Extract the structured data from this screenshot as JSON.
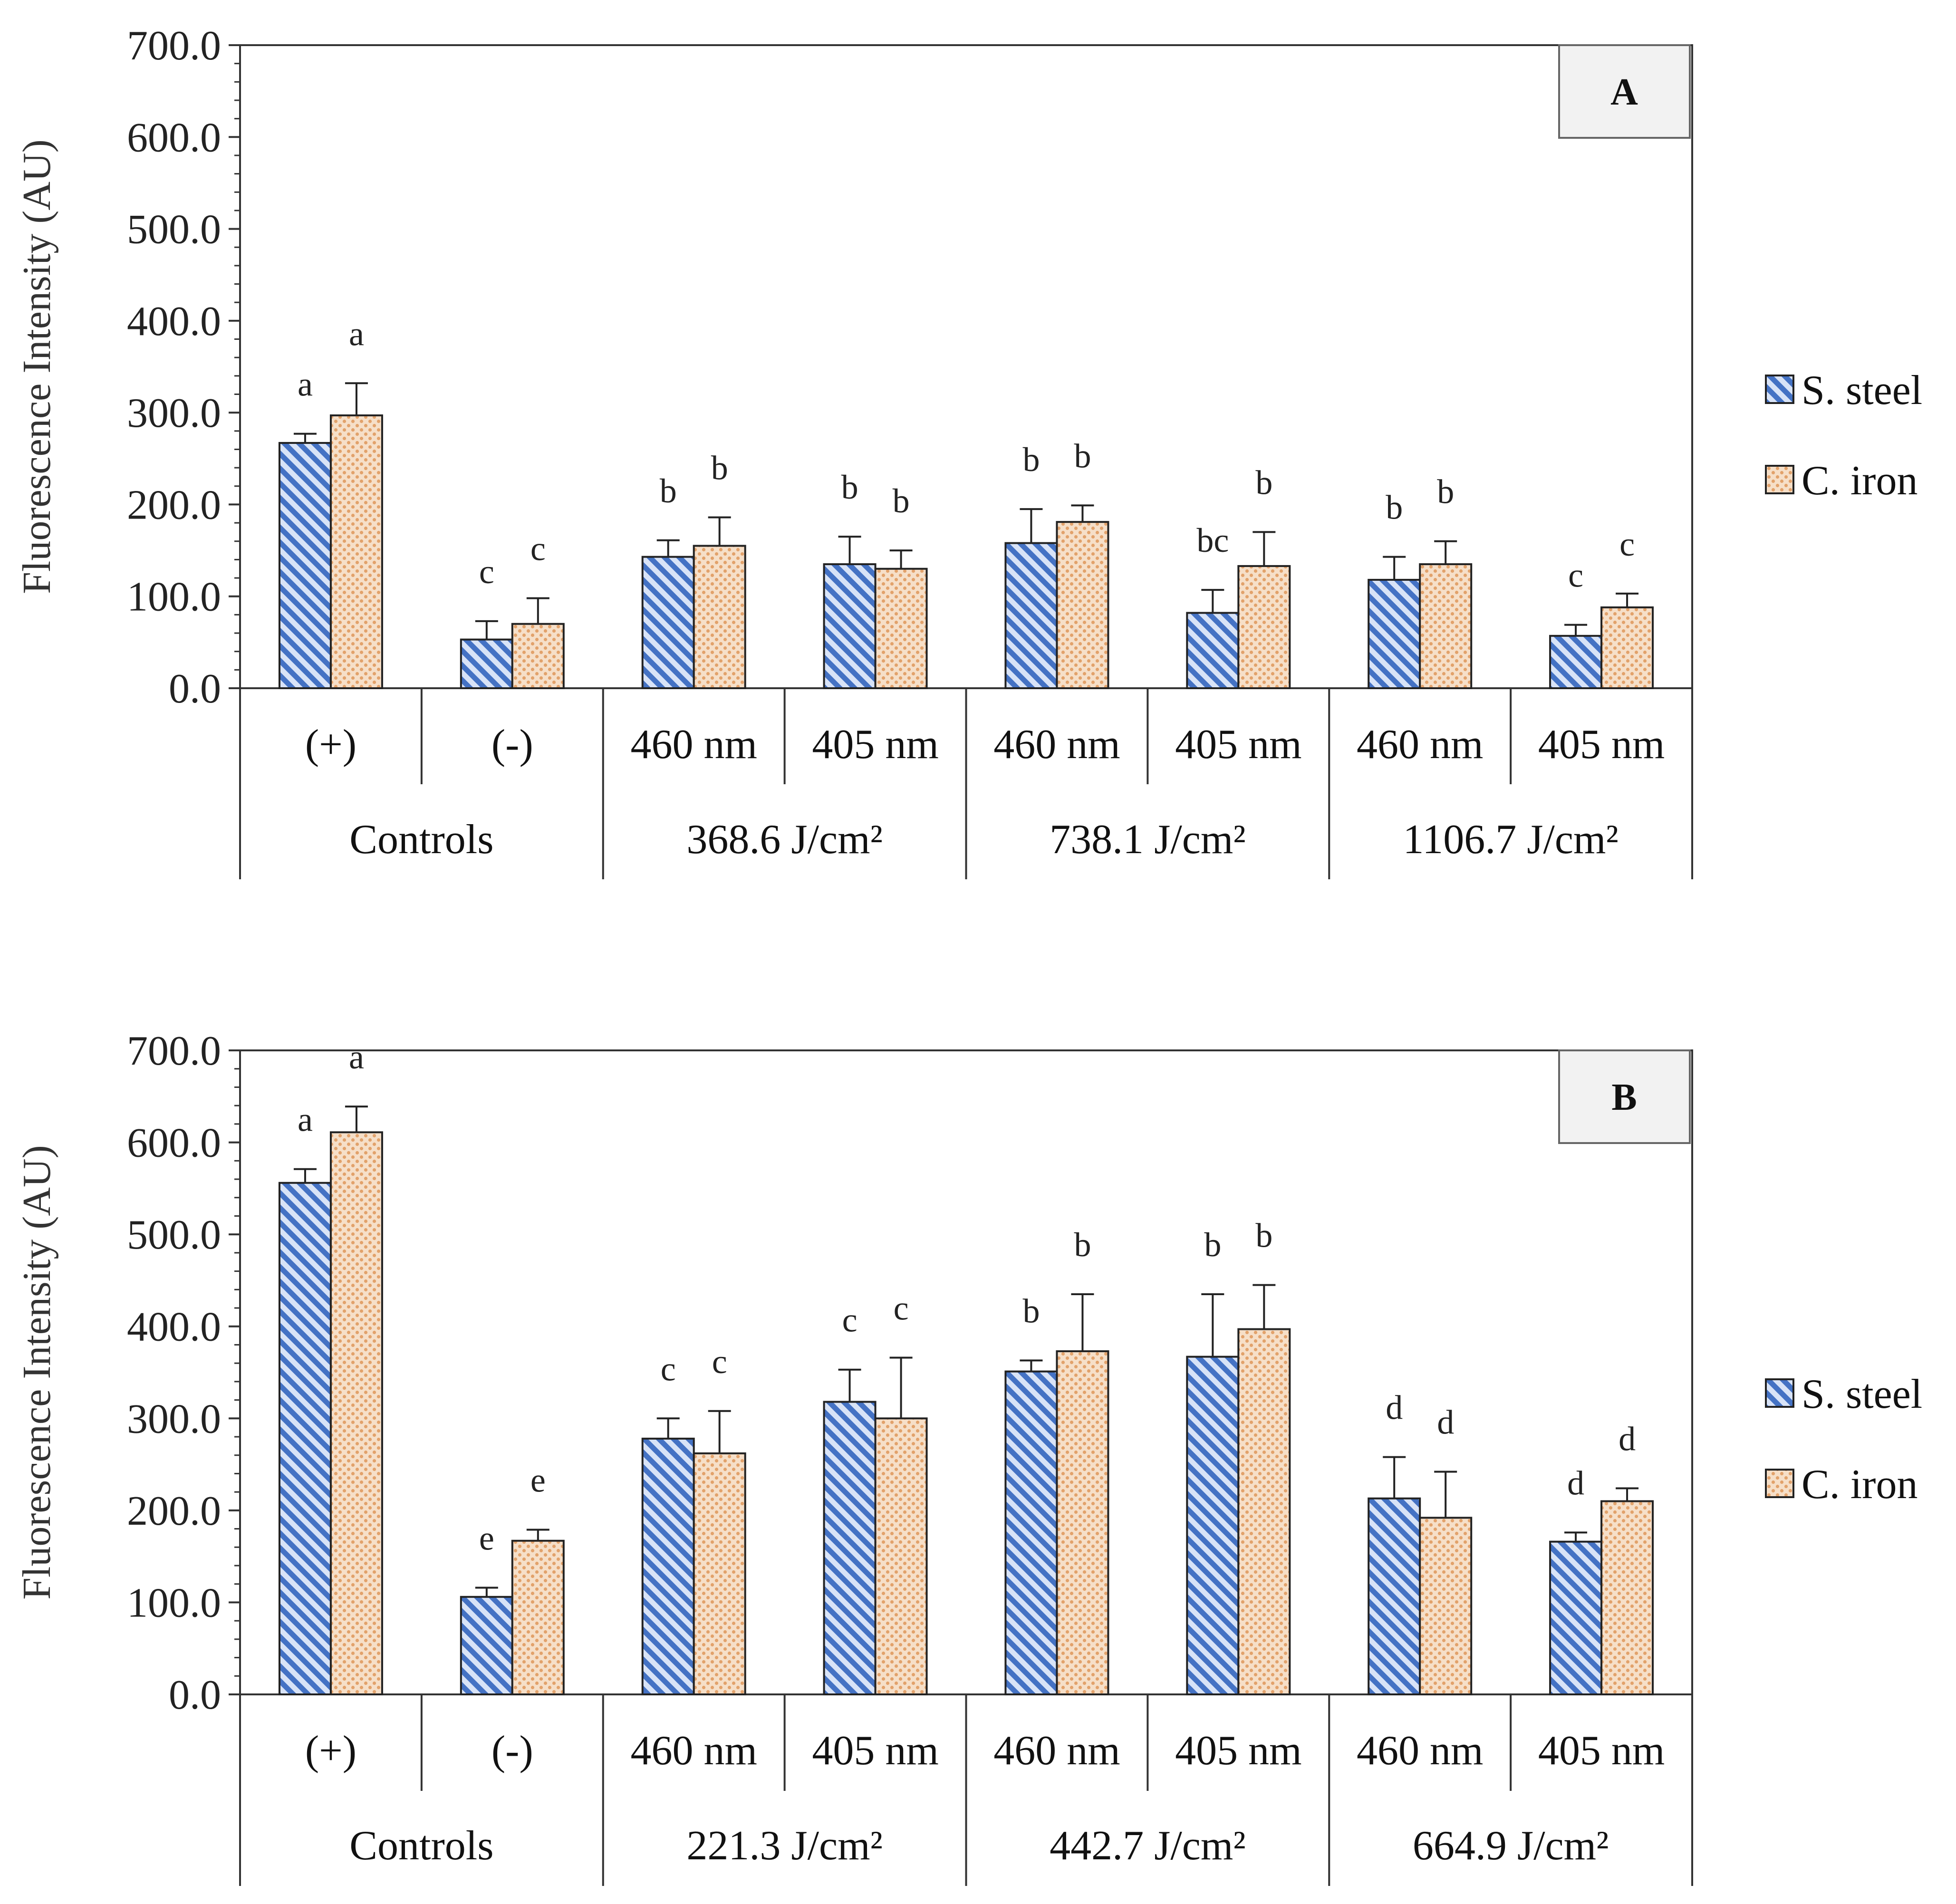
{
  "chart_data": [
    {
      "type": "bar",
      "panel": "A",
      "ylabel": "Fluorescence Intensity (AU)",
      "ylim": [
        0,
        700
      ],
      "yticks": [
        0,
        100,
        200,
        300,
        400,
        500,
        600,
        700
      ],
      "ytick_labels": [
        "0.0",
        "100.0",
        "200.0",
        "300.0",
        "400.0",
        "500.0",
        "600.0",
        "700.0"
      ],
      "categories": [
        "(+)",
        "(-)",
        "460 nm",
        "405 nm",
        "460 nm",
        "405 nm",
        "460 nm",
        "405 nm"
      ],
      "groups": [
        {
          "label": "Controls",
          "span": 2
        },
        {
          "label": "368.6 J/cm²",
          "span": 2
        },
        {
          "label": "738.1 J/cm²",
          "span": 2
        },
        {
          "label": "1106.7 J/cm²",
          "span": 2
        }
      ],
      "series": [
        {
          "name": "S. steel",
          "color": "#4472c4",
          "pattern": "diagonal",
          "values": [
            267,
            53,
            143,
            135,
            158,
            82,
            118,
            57
          ],
          "errors": [
            10,
            20,
            18,
            30,
            37,
            25,
            25,
            12
          ],
          "letters": [
            "a",
            "c",
            "b",
            "b",
            "b",
            "bc",
            "b",
            "c"
          ]
        },
        {
          "name": "C. iron",
          "color": "#e2a26b",
          "pattern": "dots",
          "values": [
            297,
            70,
            155,
            130,
            181,
            133,
            135,
            88
          ],
          "errors": [
            35,
            28,
            31,
            20,
            18,
            37,
            25,
            15
          ],
          "letters": [
            "a",
            "c",
            "b",
            "b",
            "b",
            "b",
            "b",
            "c"
          ]
        }
      ]
    },
    {
      "type": "bar",
      "panel": "B",
      "ylabel": "Fluorescence Intensity (AU)",
      "ylim": [
        0,
        700
      ],
      "yticks": [
        0,
        100,
        200,
        300,
        400,
        500,
        600,
        700
      ],
      "ytick_labels": [
        "0.0",
        "100.0",
        "200.0",
        "300.0",
        "400.0",
        "500.0",
        "600.0",
        "700.0"
      ],
      "categories": [
        "(+)",
        "(-)",
        "460 nm",
        "405 nm",
        "460 nm",
        "405 nm",
        "460 nm",
        "405 nm"
      ],
      "groups": [
        {
          "label": "Controls",
          "span": 2
        },
        {
          "label": "221.3 J/cm²",
          "span": 2
        },
        {
          "label": "442.7 J/cm²",
          "span": 2
        },
        {
          "label": "664.9 J/cm²",
          "span": 2
        }
      ],
      "series": [
        {
          "name": "S. steel",
          "color": "#4472c4",
          "pattern": "diagonal",
          "values": [
            556,
            106,
            278,
            318,
            351,
            367,
            213,
            166
          ],
          "errors": [
            15,
            10,
            22,
            35,
            12,
            68,
            45,
            10
          ],
          "letters": [
            "a",
            "e",
            "c",
            "c",
            "b",
            "b",
            "d",
            "d"
          ]
        },
        {
          "name": "C. iron",
          "color": "#e2a26b",
          "pattern": "dots",
          "values": [
            611,
            167,
            262,
            300,
            373,
            397,
            192,
            210
          ],
          "errors": [
            28,
            12,
            46,
            66,
            62,
            48,
            50,
            14
          ],
          "letters": [
            "a",
            "e",
            "c",
            "c",
            "b",
            "b",
            "d",
            "d"
          ]
        }
      ]
    }
  ],
  "legend": {
    "items": [
      "S. steel",
      "C. iron"
    ]
  }
}
